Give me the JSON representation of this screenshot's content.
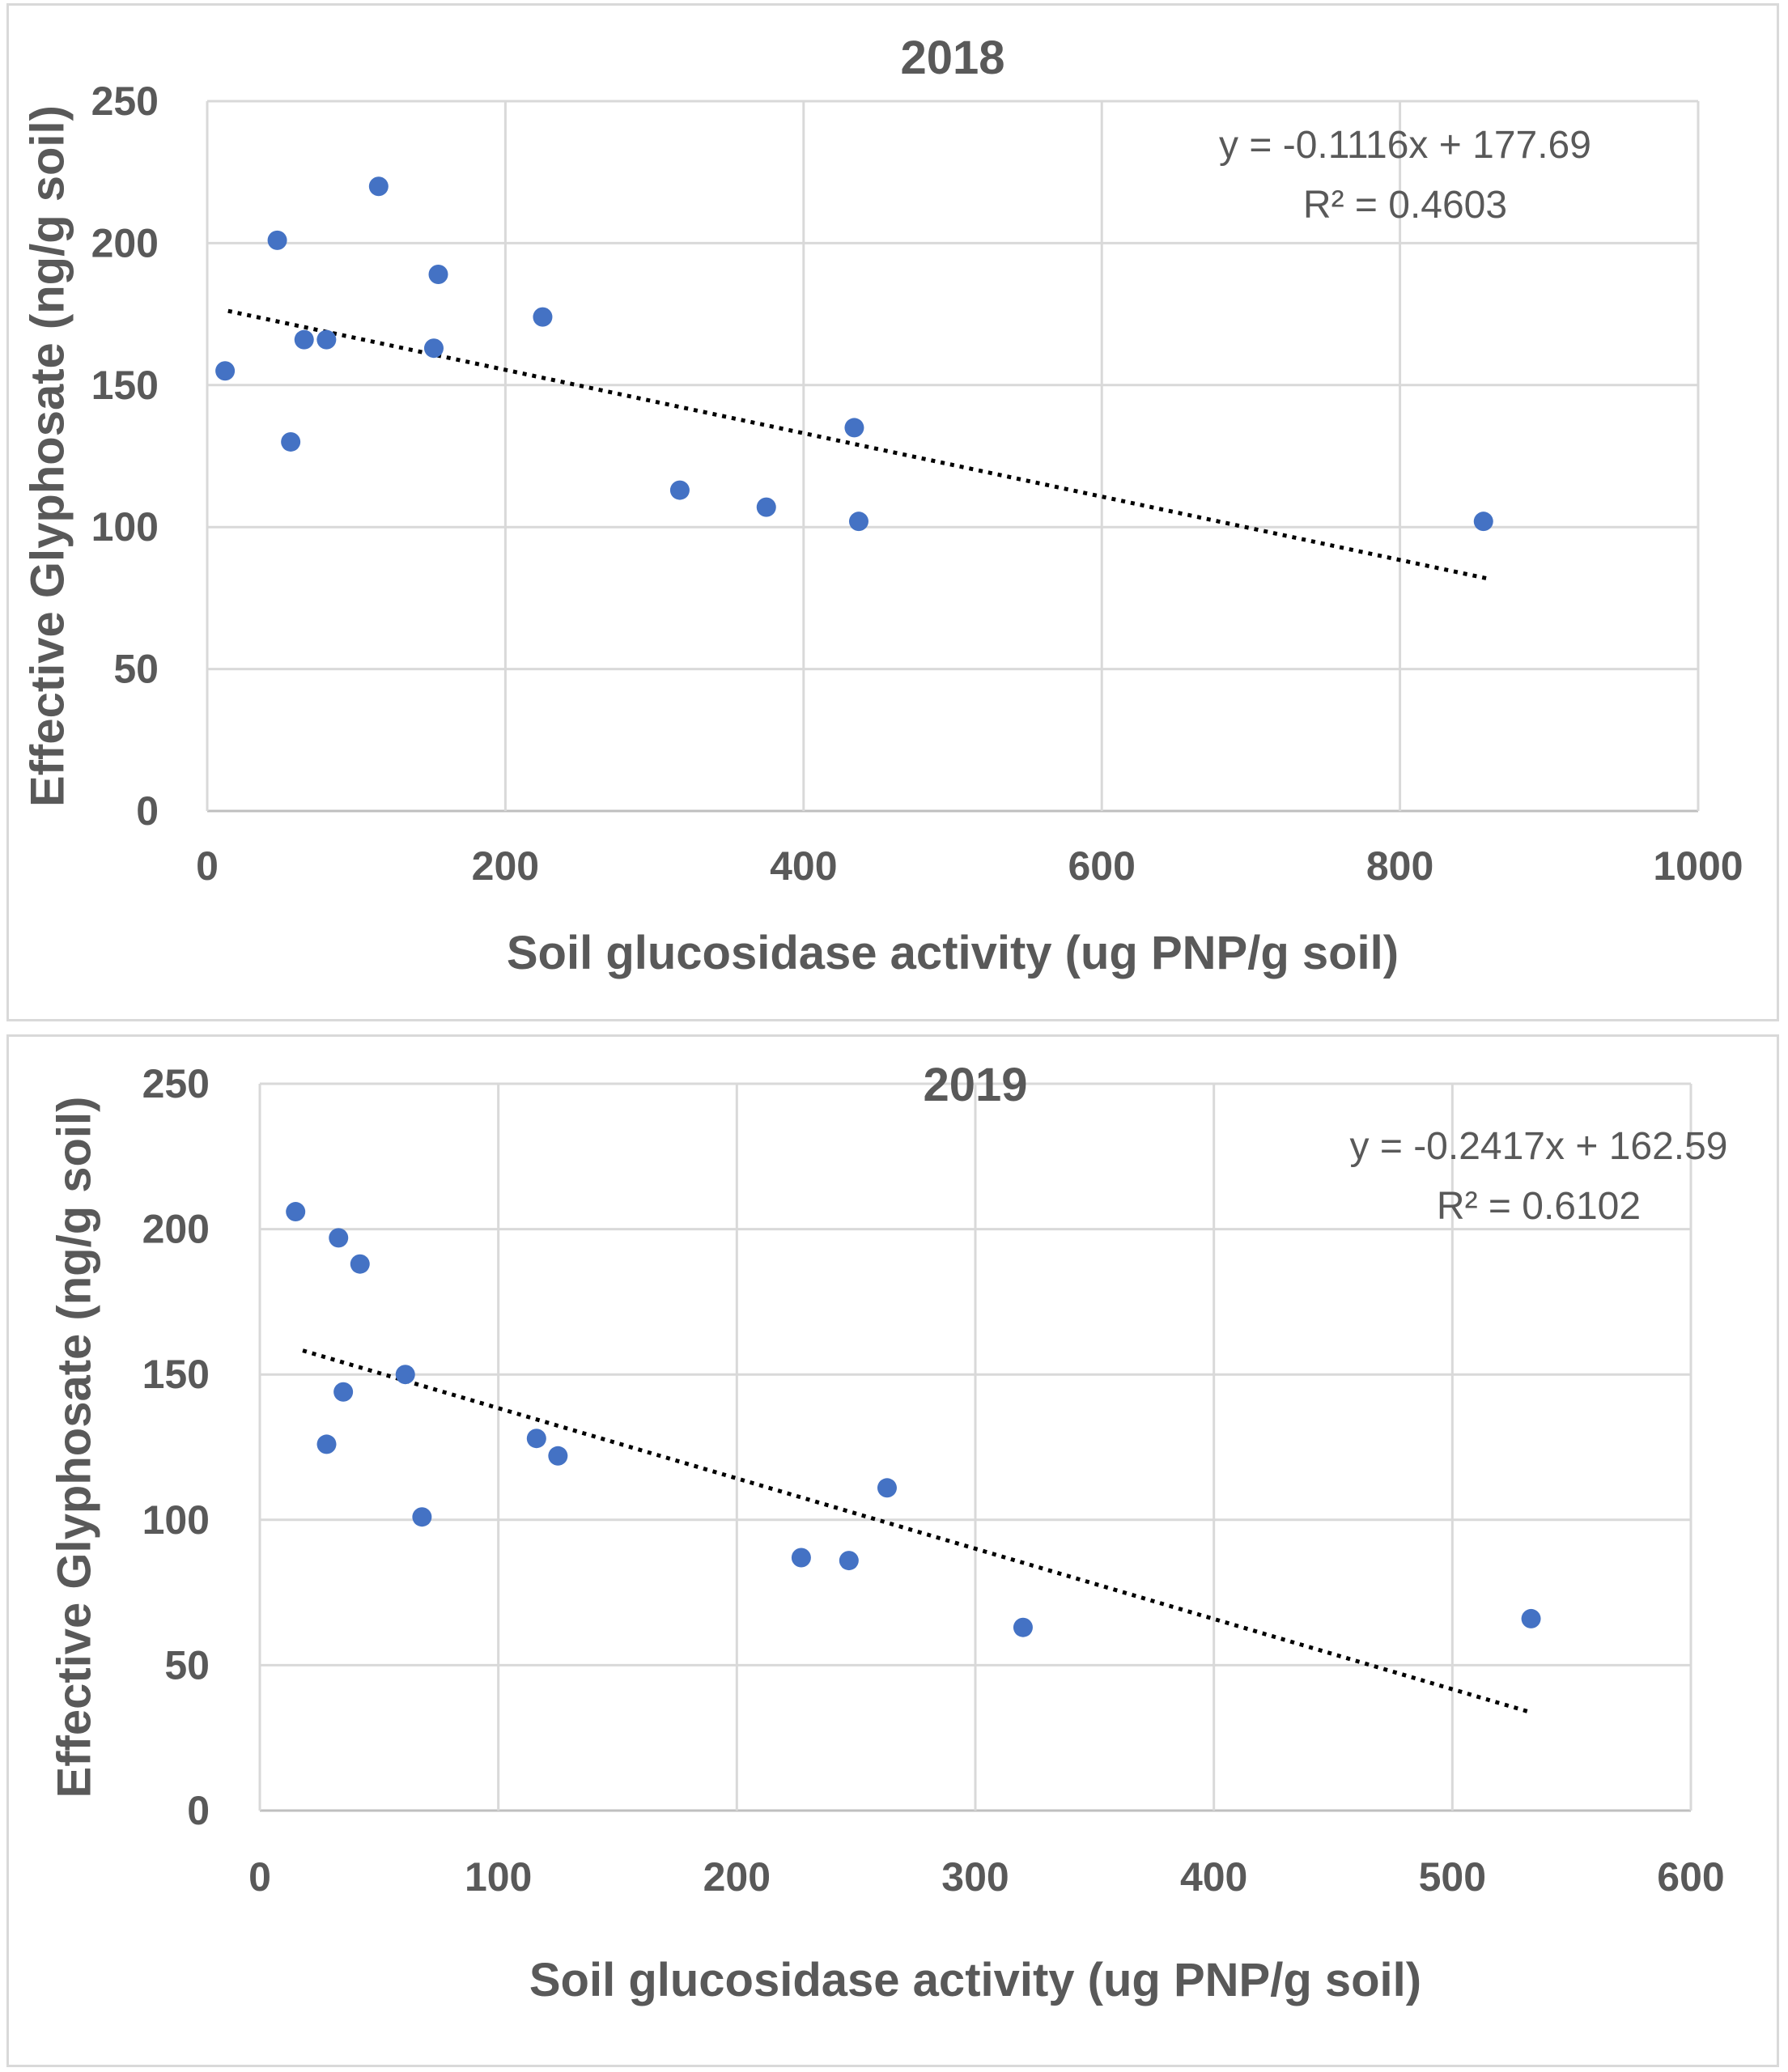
{
  "chart_data": [
    {
      "type": "scatter",
      "title": "2018",
      "xlabel": "Soil glucosidase activity (ug PNP/g soil)",
      "ylabel": "Effective Glyphosate (ng/g soil)",
      "xlim": [
        0,
        1000
      ],
      "ylim": [
        0,
        250
      ],
      "xticks": [
        0,
        200,
        400,
        600,
        800,
        1000
      ],
      "yticks": [
        0,
        50,
        100,
        150,
        200,
        250
      ],
      "grid": true,
      "marker_color": "#4472c4",
      "points": [
        {
          "x": 12,
          "y": 155
        },
        {
          "x": 47,
          "y": 201
        },
        {
          "x": 56,
          "y": 130
        },
        {
          "x": 65,
          "y": 166
        },
        {
          "x": 80,
          "y": 166
        },
        {
          "x": 115,
          "y": 220
        },
        {
          "x": 152,
          "y": 163
        },
        {
          "x": 155,
          "y": 189
        },
        {
          "x": 225,
          "y": 174
        },
        {
          "x": 317,
          "y": 113
        },
        {
          "x": 375,
          "y": 107
        },
        {
          "x": 434,
          "y": 135
        },
        {
          "x": 437,
          "y": 102
        },
        {
          "x": 856,
          "y": 102
        }
      ],
      "trendline": {
        "slope": -0.1116,
        "intercept": 177.69,
        "x_range": [
          14,
          859
        ],
        "style": "dotted"
      },
      "equation": "y = -0.1116x + 177.69",
      "r_squared": "R² = 0.4603"
    },
    {
      "type": "scatter",
      "title": "2019",
      "xlabel": "Soil glucosidase activity (ug PNP/g soil)",
      "ylabel": "Effective Glyphosate (ng/g soil)",
      "xlim": [
        0,
        600
      ],
      "ylim": [
        0,
        250
      ],
      "xticks": [
        0,
        100,
        200,
        300,
        400,
        500,
        600
      ],
      "yticks": [
        0,
        50,
        100,
        150,
        200,
        250
      ],
      "grid": true,
      "marker_color": "#4472c4",
      "points": [
        {
          "x": 15,
          "y": 206
        },
        {
          "x": 28,
          "y": 126
        },
        {
          "x": 33,
          "y": 197
        },
        {
          "x": 35,
          "y": 144
        },
        {
          "x": 42,
          "y": 188
        },
        {
          "x": 61,
          "y": 150
        },
        {
          "x": 68,
          "y": 101
        },
        {
          "x": 116,
          "y": 128
        },
        {
          "x": 125,
          "y": 122
        },
        {
          "x": 227,
          "y": 87
        },
        {
          "x": 247,
          "y": 86
        },
        {
          "x": 263,
          "y": 111
        },
        {
          "x": 320,
          "y": 63
        },
        {
          "x": 533,
          "y": 66
        }
      ],
      "trendline": {
        "slope": -0.2417,
        "intercept": 162.59,
        "x_range": [
          18,
          533
        ],
        "style": "dotted"
      },
      "equation": "y = -0.2417x + 162.59",
      "r_squared": "R² = 0.6102"
    }
  ]
}
